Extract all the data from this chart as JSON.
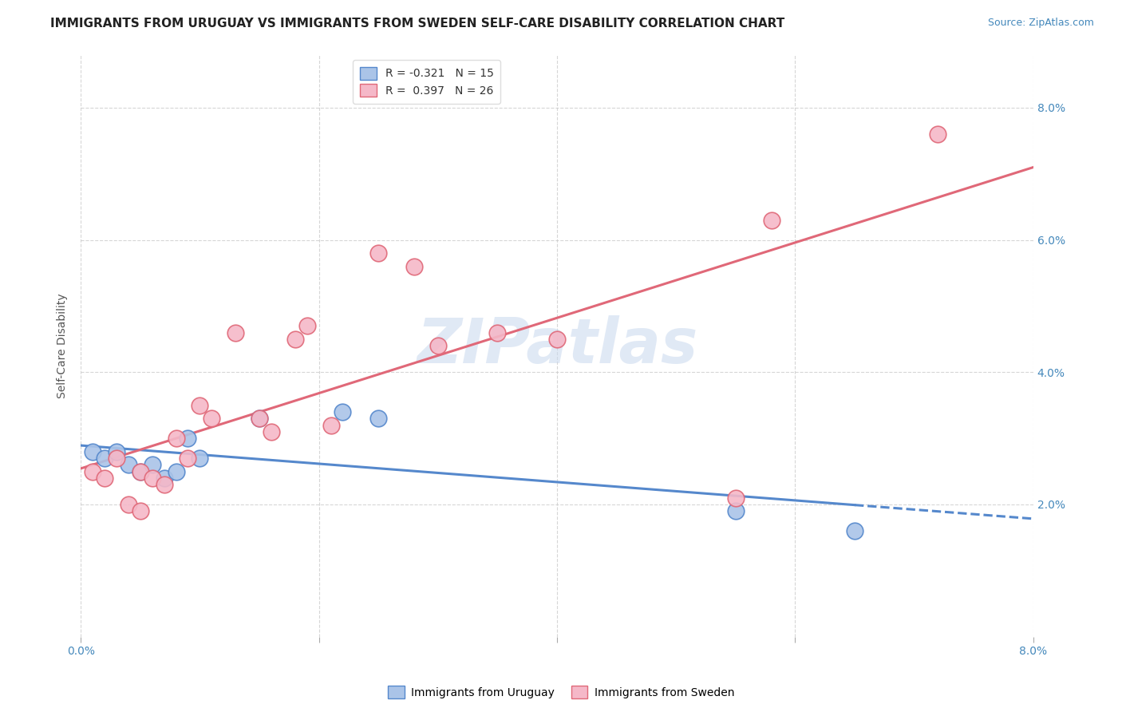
{
  "title": "IMMIGRANTS FROM URUGUAY VS IMMIGRANTS FROM SWEDEN SELF-CARE DISABILITY CORRELATION CHART",
  "source": "Source: ZipAtlas.com",
  "ylabel": "Self-Care Disability",
  "legend_label1": "Immigrants from Uruguay",
  "legend_label2": "Immigrants from Sweden",
  "r1": "-0.321",
  "n1": "15",
  "r2": "0.397",
  "n2": "26",
  "xlim": [
    0.0,
    0.08
  ],
  "ylim": [
    0.0,
    0.088
  ],
  "yticks": [
    0.02,
    0.04,
    0.06,
    0.08
  ],
  "ytick_labels": [
    "2.0%",
    "4.0%",
    "6.0%",
    "8.0%"
  ],
  "xticks": [
    0.0,
    0.02,
    0.04,
    0.06,
    0.08
  ],
  "xtick_labels": [
    "0.0%",
    "",
    "",
    "",
    "8.0%"
  ],
  "color_uruguay": "#aac4e8",
  "color_sweden": "#f5b8c8",
  "line_color_uruguay": "#5588cc",
  "line_color_sweden": "#e06878",
  "background_color": "#ffffff",
  "grid_color": "#cccccc",
  "watermark": "ZIPatlas",
  "uruguay_x": [
    0.001,
    0.002,
    0.003,
    0.004,
    0.005,
    0.006,
    0.007,
    0.008,
    0.009,
    0.01,
    0.015,
    0.022,
    0.025,
    0.055,
    0.065
  ],
  "uruguay_y": [
    0.028,
    0.027,
    0.028,
    0.026,
    0.025,
    0.026,
    0.024,
    0.025,
    0.03,
    0.027,
    0.033,
    0.034,
    0.033,
    0.019,
    0.016
  ],
  "sweden_x": [
    0.001,
    0.002,
    0.003,
    0.004,
    0.005,
    0.005,
    0.006,
    0.007,
    0.008,
    0.009,
    0.01,
    0.011,
    0.013,
    0.015,
    0.016,
    0.018,
    0.019,
    0.021,
    0.025,
    0.028,
    0.03,
    0.035,
    0.04,
    0.055,
    0.058,
    0.072
  ],
  "sweden_y": [
    0.025,
    0.024,
    0.027,
    0.02,
    0.025,
    0.019,
    0.024,
    0.023,
    0.03,
    0.027,
    0.035,
    0.033,
    0.046,
    0.033,
    0.031,
    0.045,
    0.047,
    0.032,
    0.058,
    0.056,
    0.044,
    0.046,
    0.045,
    0.021,
    0.063,
    0.076
  ],
  "title_fontsize": 11,
  "axis_label_fontsize": 10,
  "tick_fontsize": 10,
  "legend_fontsize": 10
}
